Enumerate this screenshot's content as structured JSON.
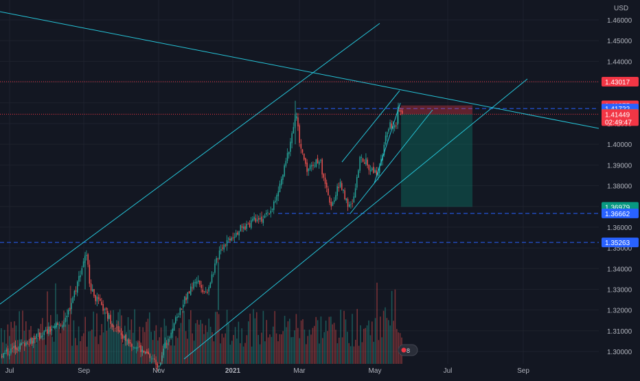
{
  "chart_data": {
    "type": "candlestick",
    "title": "",
    "currency": "USD",
    "ylim": [
      1.2945,
      1.469
    ],
    "y_ticks": [
      "1.46000",
      "1.45000",
      "1.44000",
      "1.43000",
      "1.42000",
      "1.41000",
      "1.40000",
      "1.39000",
      "1.38000",
      "1.37000",
      "1.36000",
      "1.35000",
      "1.34000",
      "1.33000",
      "1.32000",
      "1.31000",
      "1.30000"
    ],
    "x_ticks": [
      "Jul",
      "Sep",
      "Nov",
      "2021",
      "Mar",
      "May",
      "Jul",
      "Sep"
    ],
    "price_labels": [
      {
        "value": "1.43017",
        "color": "#f23645",
        "style": "dotted"
      },
      {
        "value": "1.41875",
        "color": "#f23645",
        "style": "none"
      },
      {
        "value": "1.41722",
        "color": "#2962ff",
        "style": "dashed"
      },
      {
        "value": "1.41471",
        "color": "#787b86",
        "style": "none"
      },
      {
        "value": "1.41449",
        "sub": "02:49:47",
        "color": "#f23645",
        "style": "dotted"
      },
      {
        "value": "1.36979",
        "color": "#089981",
        "style": "none"
      },
      {
        "value": "1.36662",
        "color": "#2962ff",
        "style": "dashed"
      },
      {
        "value": "1.35263",
        "color": "#2962ff",
        "style": "dashed"
      }
    ],
    "series": [
      {
        "name": "Close (approx.)",
        "points": [
          [
            "Jul",
            1.298
          ],
          [
            "Aug",
            1.31
          ],
          [
            "Aug",
            1.315
          ],
          [
            "Sep",
            1.34
          ],
          [
            "Sep",
            1.346
          ],
          [
            "Sep",
            1.325
          ],
          [
            "Oct",
            1.305
          ],
          [
            "Oct",
            1.296
          ],
          [
            "Nov",
            1.292
          ],
          [
            "Nov",
            1.31
          ],
          [
            "Nov",
            1.33
          ],
          [
            "Dec",
            1.345
          ],
          [
            "Dec",
            1.355
          ],
          [
            "2021",
            1.36
          ],
          [
            "2021",
            1.365
          ],
          [
            "Feb",
            1.375
          ],
          [
            "Feb",
            1.39
          ],
          [
            "Feb",
            1.415
          ],
          [
            "Mar",
            1.4
          ],
          [
            "Mar",
            1.388
          ],
          [
            "Mar",
            1.39
          ],
          [
            "Apr",
            1.378
          ],
          [
            "Apr",
            1.37
          ],
          [
            "Apr",
            1.385
          ],
          [
            "May",
            1.39
          ],
          [
            "May",
            1.41
          ],
          [
            "May",
            1.42
          ],
          [
            "May",
            1.4145
          ]
        ]
      }
    ],
    "volume_colors": {
      "up": "#26a69a",
      "down": "#ef5350"
    },
    "annotations": {
      "short_position": {
        "entry": 1.41449,
        "stop": 1.41875,
        "target": 1.36979
      },
      "support_lines": [
        1.36662,
        1.35263
      ],
      "resistance_lines": [
        1.41722
      ]
    },
    "colors": {
      "background": "#131722",
      "up": "#26a69a",
      "down": "#ef5350",
      "trendline": "#26c6da",
      "axis_text": "#b2b5be",
      "grid": "#1e222d"
    },
    "badge": {
      "text": "8"
    }
  }
}
